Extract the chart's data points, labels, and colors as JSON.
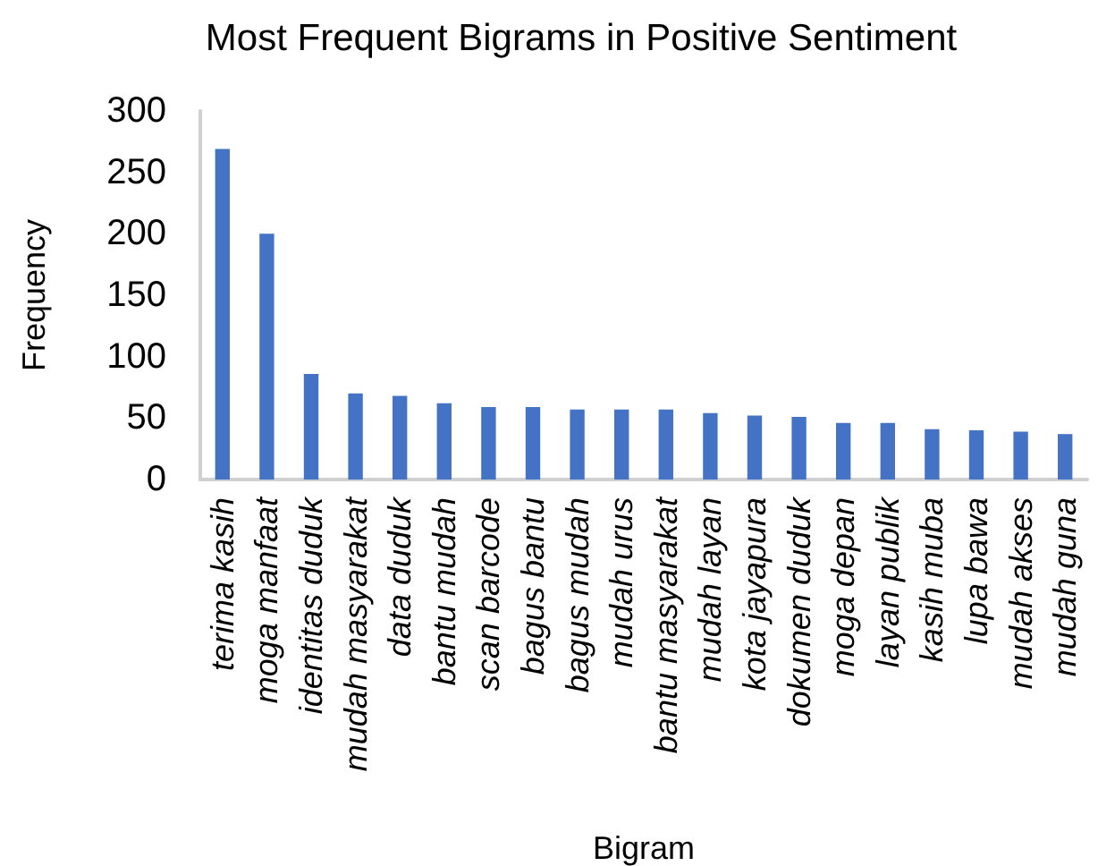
{
  "chart_data": {
    "type": "bar",
    "title": "Most Frequent Bigrams in Positive Sentiment",
    "xlabel": "Bigram",
    "ylabel": "Frequency",
    "categories": [
      "terima kasih",
      "moga manfaat",
      "identitas duduk",
      "mudah masyarakat",
      "data duduk",
      "bantu mudah",
      "scan barcode",
      "bagus bantu",
      "bagus mudah",
      "mudah urus",
      "bantu masyarakat",
      "mudah layan",
      "kota jayapura",
      "dokumen duduk",
      "moga depan",
      "layan publik",
      "kasih muba",
      "lupa bawa",
      "mudah akses",
      "mudah guna"
    ],
    "values": [
      269,
      200,
      86,
      70,
      68,
      62,
      59,
      59,
      57,
      57,
      57,
      54,
      52,
      51,
      46,
      46,
      41,
      40,
      39,
      37
    ],
    "color": "#4472c4",
    "ylim": [
      0,
      300
    ],
    "yticks": [
      0,
      50,
      100,
      150,
      200,
      250,
      300
    ],
    "grid": false
  }
}
